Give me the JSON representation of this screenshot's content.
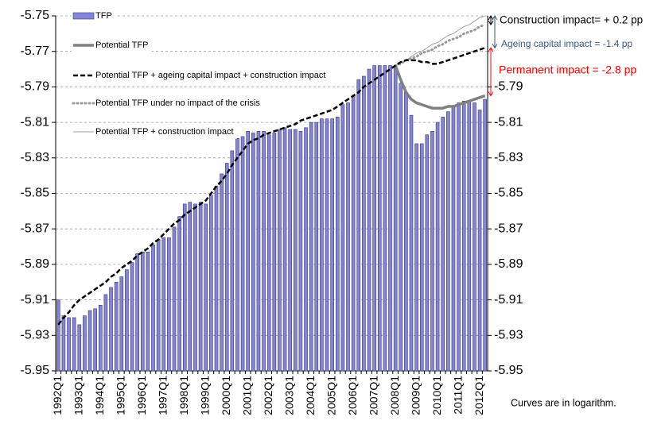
{
  "chart_data": {
    "type": "bar",
    "categories": [
      "1992Q1",
      null,
      null,
      null,
      "1993Q1",
      null,
      null,
      null,
      "1994Q1",
      null,
      null,
      null,
      "1995Q1",
      null,
      null,
      null,
      "1996Q1",
      null,
      null,
      null,
      "1997Q1",
      null,
      null,
      null,
      "1998Q1",
      null,
      null,
      null,
      "1999Q1",
      null,
      null,
      null,
      "2000Q1",
      null,
      null,
      null,
      "2001Q1",
      null,
      null,
      null,
      "2002Q1",
      null,
      null,
      null,
      "2003Q1",
      null,
      null,
      null,
      "2004Q1",
      null,
      null,
      null,
      "2005Q1",
      null,
      null,
      null,
      "2006Q1",
      null,
      null,
      null,
      "2007Q1",
      null,
      null,
      null,
      "2008Q1",
      null,
      null,
      null,
      "2009Q1",
      null,
      null,
      null,
      "2010Q1",
      null,
      null,
      null,
      "2011Q1",
      null,
      null,
      null,
      "2012Q1",
      null
    ],
    "series": [
      {
        "name": "TFP",
        "type": "bar",
        "color": "#8585d6",
        "values": [
          -5.91,
          -5.919,
          -5.92,
          -5.92,
          -5.924,
          -5.919,
          -5.916,
          -5.915,
          -5.913,
          -5.907,
          -5.903,
          -5.9,
          -5.897,
          -5.893,
          -5.889,
          -5.884,
          -5.883,
          -5.883,
          -5.879,
          -5.876,
          -5.875,
          -5.875,
          -5.869,
          -5.863,
          -5.856,
          -5.855,
          -5.856,
          -5.855,
          -5.856,
          -5.851,
          -5.846,
          -5.839,
          -5.833,
          -5.826,
          -5.819,
          -5.818,
          -5.815,
          -5.816,
          -5.815,
          -5.815,
          -5.817,
          -5.816,
          -5.814,
          -5.813,
          -5.814,
          -5.814,
          -5.815,
          -5.813,
          -5.81,
          -5.81,
          -5.808,
          -5.808,
          -5.808,
          -5.807,
          -5.8,
          -5.799,
          -5.795,
          -5.786,
          -5.784,
          -5.78,
          -5.778,
          -5.778,
          -5.778,
          -5.778,
          -5.778,
          -5.788,
          -5.793,
          -5.806,
          -5.822,
          -5.822,
          -5.817,
          -5.815,
          -5.81,
          -5.807,
          -5.804,
          -5.801,
          -5.799,
          -5.798,
          -5.798,
          -5.799,
          -5.803,
          -5.797
        ]
      },
      {
        "name": "Potential TFP",
        "type": "line",
        "style": "thick",
        "color": "#808080",
        "values": [
          null,
          null,
          null,
          null,
          null,
          null,
          null,
          null,
          null,
          null,
          null,
          null,
          null,
          null,
          null,
          null,
          null,
          null,
          null,
          null,
          null,
          null,
          null,
          null,
          null,
          null,
          null,
          null,
          null,
          null,
          null,
          null,
          null,
          null,
          null,
          null,
          null,
          null,
          null,
          null,
          null,
          null,
          null,
          null,
          null,
          null,
          null,
          null,
          null,
          null,
          null,
          null,
          null,
          null,
          null,
          null,
          null,
          null,
          null,
          null,
          null,
          null,
          null,
          null,
          -5.778,
          -5.786,
          -5.793,
          -5.797,
          -5.799,
          -5.8,
          -5.801,
          -5.802,
          -5.802,
          -5.802,
          -5.801,
          -5.801,
          -5.8,
          -5.799,
          -5.798,
          -5.797,
          -5.796,
          -5.795
        ]
      },
      {
        "name": "Potential TFP + ageing capital impact + construction impact",
        "type": "line",
        "style": "dashed",
        "color": "#000000",
        "values": [
          -5.924,
          -5.92,
          -5.917,
          -5.913,
          -5.91,
          -5.908,
          -5.906,
          -5.904,
          -5.902,
          -5.9,
          -5.897,
          -5.895,
          -5.892,
          -5.89,
          -5.888,
          -5.885,
          -5.883,
          -5.881,
          -5.878,
          -5.876,
          -5.873,
          -5.87,
          -5.867,
          -5.865,
          -5.862,
          -5.86,
          -5.858,
          -5.856,
          -5.854,
          -5.85,
          -5.846,
          -5.843,
          -5.839,
          -5.834,
          -5.83,
          -5.826,
          -5.822,
          -5.82,
          -5.819,
          -5.817,
          -5.816,
          -5.815,
          -5.814,
          -5.813,
          -5.812,
          -5.811,
          -5.809,
          -5.808,
          -5.807,
          -5.806,
          -5.805,
          -5.804,
          -5.803,
          -5.801,
          -5.799,
          -5.797,
          -5.795,
          -5.793,
          -5.79,
          -5.788,
          -5.786,
          -5.784,
          -5.782,
          -5.78,
          -5.778,
          -5.776,
          -5.775,
          -5.775,
          -5.775,
          -5.776,
          -5.776,
          -5.777,
          -5.777,
          -5.776,
          -5.775,
          -5.774,
          -5.773,
          -5.772,
          -5.771,
          -5.77,
          -5.769,
          -5.768
        ]
      },
      {
        "name": "Potential TFP under no impact of the crisis",
        "type": "line",
        "style": "dotted",
        "color": "#999999",
        "values": [
          null,
          null,
          null,
          null,
          null,
          null,
          null,
          null,
          null,
          null,
          null,
          null,
          null,
          null,
          null,
          null,
          null,
          null,
          null,
          null,
          null,
          null,
          null,
          null,
          null,
          null,
          null,
          null,
          null,
          null,
          null,
          null,
          null,
          null,
          null,
          null,
          null,
          null,
          null,
          null,
          null,
          null,
          null,
          null,
          null,
          null,
          null,
          null,
          null,
          null,
          null,
          null,
          null,
          null,
          null,
          null,
          null,
          null,
          null,
          null,
          null,
          null,
          null,
          null,
          -5.778,
          -5.777,
          -5.775,
          -5.774,
          -5.773,
          -5.771,
          -5.77,
          -5.769,
          -5.767,
          -5.766,
          -5.764,
          -5.763,
          -5.762,
          -5.76,
          -5.759,
          -5.758,
          -5.756,
          -5.755
        ]
      },
      {
        "name": "Potential TFP + construction impact",
        "type": "line",
        "style": "thin",
        "color": "#a0a0a0",
        "values": [
          null,
          null,
          null,
          null,
          null,
          null,
          null,
          null,
          null,
          null,
          null,
          null,
          null,
          null,
          null,
          null,
          null,
          null,
          null,
          null,
          null,
          null,
          null,
          null,
          null,
          null,
          null,
          null,
          null,
          null,
          null,
          null,
          null,
          null,
          null,
          null,
          null,
          null,
          null,
          null,
          null,
          null,
          null,
          null,
          null,
          null,
          null,
          null,
          null,
          null,
          null,
          null,
          null,
          null,
          null,
          null,
          null,
          null,
          null,
          null,
          null,
          null,
          null,
          null,
          -5.778,
          -5.776,
          -5.775,
          -5.773,
          -5.771,
          -5.77,
          -5.768,
          -5.766,
          -5.765,
          -5.763,
          -5.761,
          -5.76,
          -5.758,
          -5.756,
          -5.755,
          -5.753,
          -5.751,
          -5.75
        ]
      }
    ],
    "ylim": [
      -5.95,
      -5.75
    ],
    "yticks": [
      -5.75,
      -5.77,
      -5.79,
      -5.81,
      -5.83,
      -5.85,
      -5.87,
      -5.89,
      -5.91,
      -5.93,
      -5.95
    ],
    "y2lim": [
      -5.95,
      -5.75
    ],
    "y2ticks": [
      -5.79,
      -5.81,
      -5.83,
      -5.85,
      -5.87,
      -5.89,
      -5.91,
      -5.93,
      -5.95
    ],
    "grid": true,
    "legend": "top-left",
    "annotations": [
      {
        "text": "Construction impact= + 0.2 pp",
        "color": "#000000"
      },
      {
        "text": "Ageing capital impact = -1.4 pp",
        "color": "#3a5a8a"
      },
      {
        "text": "Permanent impact = -2.8 pp",
        "color": "#ff0000"
      },
      {
        "text": "Curves are in logarithm.",
        "color": "#000000"
      }
    ]
  }
}
